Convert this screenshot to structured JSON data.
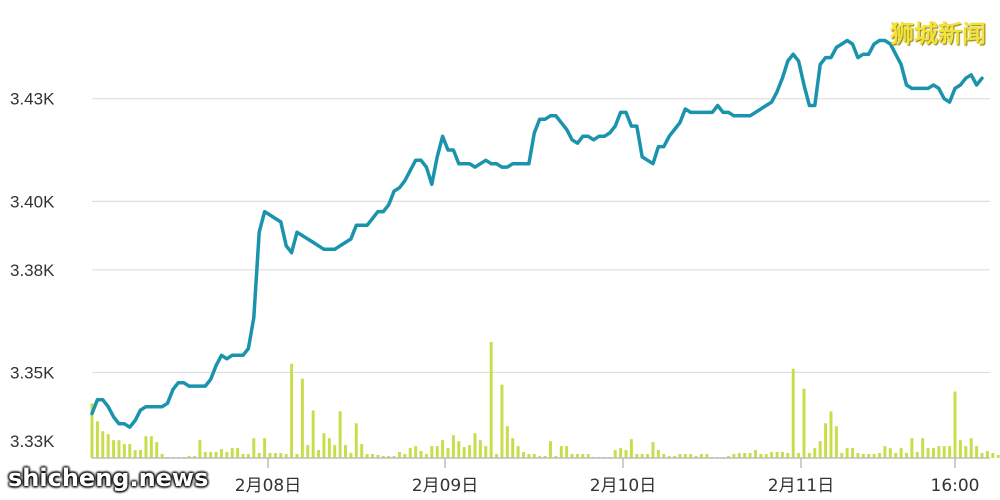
{
  "watermarks": {
    "top_right": "狮城新闻",
    "bottom_left": "shicheng.news"
  },
  "colors": {
    "line": "#1a94ad",
    "volume": "#c9dc4a",
    "grid": "#dedede",
    "axis": "#bdbdbd"
  },
  "chart_data": {
    "type": "line",
    "title": "",
    "xlabel": "",
    "ylabel": "",
    "y_ticks": [
      "3.33K",
      "3.35K",
      "3.38K",
      "3.40K",
      "3.43K"
    ],
    "ylim": [
      3325,
      3453
    ],
    "x_ticks": [
      "2月08日",
      "2月09日",
      "2月10日",
      "2月11日",
      "16:00"
    ],
    "grid": true,
    "series": [
      {
        "role": "price",
        "values": [
          3338,
          3342,
          3342,
          3340,
          3337,
          3335,
          3335,
          3334,
          3336,
          3339,
          3340,
          3340,
          3340,
          3340,
          3341,
          3345,
          3347,
          3347,
          3346,
          3346,
          3346,
          3346,
          3348,
          3352,
          3355,
          3354,
          3355,
          3355,
          3355,
          3357,
          3366,
          3391,
          3397,
          3396,
          3395,
          3394,
          3387,
          3385,
          3391,
          3390,
          3389,
          3388,
          3387,
          3386,
          3386,
          3386,
          3387,
          3388,
          3389,
          3393,
          3393,
          3393,
          3395,
          3397,
          3397,
          3399,
          3403,
          3404,
          3406,
          3409,
          3412,
          3412,
          3410,
          3405,
          3413,
          3419,
          3415,
          3415,
          3411,
          3411,
          3411,
          3410,
          3411,
          3412,
          3411,
          3411,
          3410,
          3410,
          3411,
          3411,
          3411,
          3411,
          3420,
          3424,
          3424,
          3425,
          3425,
          3423,
          3421,
          3418,
          3417,
          3419,
          3419,
          3418,
          3419,
          3419,
          3420,
          3422,
          3426,
          3426,
          3422,
          3422,
          3413,
          3412,
          3411,
          3416,
          3416,
          3419,
          3421,
          3423,
          3427,
          3426,
          3426,
          3426,
          3426,
          3426,
          3428,
          3426,
          3426,
          3425,
          3425,
          3425,
          3425,
          3426,
          3427,
          3428,
          3429,
          3432,
          3436,
          3441,
          3443,
          3441,
          3434,
          3428,
          3428,
          3440,
          3442,
          3442,
          3445,
          3446,
          3447,
          3446,
          3442,
          3443,
          3443,
          3446,
          3447,
          3447,
          3446,
          3443,
          3440,
          3434,
          3433,
          3433,
          3433,
          3433,
          3434,
          3433,
          3430,
          3429,
          3433,
          3434,
          3436,
          3437,
          3434,
          3436
        ]
      },
      {
        "role": "volume",
        "values": [
          55,
          37,
          27,
          24,
          18,
          18,
          14,
          14,
          8,
          8,
          22,
          22,
          16,
          4,
          1,
          1,
          1,
          1,
          2,
          2,
          18,
          6,
          6,
          6,
          9,
          6,
          10,
          10,
          4,
          4,
          20,
          5,
          20,
          5,
          5,
          5,
          4,
          95,
          4,
          80,
          13,
          48,
          8,
          25,
          20,
          13,
          47,
          13,
          5,
          35,
          14,
          4,
          4,
          3,
          2,
          2,
          2,
          6,
          4,
          10,
          12,
          7,
          4,
          12,
          12,
          18,
          10,
          23,
          17,
          11,
          13,
          25,
          18,
          12,
          117,
          4,
          74,
          32,
          20,
          12,
          6,
          4,
          4,
          2,
          2,
          17,
          2,
          12,
          12,
          4,
          4,
          4,
          4,
          1,
          1,
          1,
          1,
          8,
          10,
          8,
          19,
          4,
          4,
          4,
          16,
          8,
          4,
          2,
          2,
          4,
          4,
          4,
          2,
          4,
          4,
          1,
          1,
          1,
          2,
          4,
          5,
          5,
          5,
          8,
          4,
          4,
          6,
          6,
          6,
          5,
          90,
          5,
          70,
          5,
          10,
          17,
          35,
          47,
          32,
          5,
          10,
          10,
          5,
          4,
          4,
          4,
          5,
          12,
          10,
          5,
          10,
          5,
          20,
          6,
          20,
          10,
          10,
          12,
          12,
          12,
          67,
          18,
          12,
          20,
          12,
          5,
          7,
          5,
          3,
          68
        ]
      }
    ]
  }
}
